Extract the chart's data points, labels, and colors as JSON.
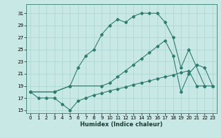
{
  "xlabel": "Humidex (Indice chaleur)",
  "xlim": [
    -0.5,
    23.5
  ],
  "ylim": [
    14.5,
    32.5
  ],
  "yticks": [
    15,
    17,
    19,
    21,
    23,
    25,
    27,
    29,
    31
  ],
  "xticks": [
    0,
    1,
    2,
    3,
    4,
    5,
    6,
    7,
    8,
    9,
    10,
    11,
    12,
    13,
    14,
    15,
    16,
    17,
    18,
    19,
    20,
    21,
    22,
    23
  ],
  "bg_color": "#c8e8e5",
  "line_color": "#2e7d6e",
  "grid_color": "#a8d4d0",
  "line1_x": [
    0,
    1,
    2,
    3,
    4,
    5,
    6,
    7,
    8,
    9,
    10,
    11,
    12,
    13,
    14,
    15,
    16,
    17,
    18,
    19,
    20,
    21,
    22,
    23
  ],
  "line1_y": [
    18,
    17,
    17,
    17,
    16,
    15,
    16.5,
    17,
    17.5,
    17.8,
    18.2,
    18.5,
    18.8,
    19.2,
    19.5,
    19.8,
    20.2,
    20.5,
    20.8,
    21.2,
    21.5,
    19,
    19,
    19
  ],
  "line2_x": [
    0,
    3,
    5,
    6,
    7,
    8,
    9,
    10,
    11,
    12,
    13,
    14,
    15,
    16,
    17,
    18,
    19,
    20,
    22
  ],
  "line2_y": [
    18,
    18,
    19,
    22,
    24,
    25,
    27.5,
    29,
    30,
    29.5,
    30.5,
    31,
    31,
    31,
    29.5,
    27,
    22,
    25,
    19
  ],
  "line3_x": [
    0,
    3,
    5,
    9,
    10,
    11,
    12,
    13,
    14,
    15,
    16,
    17,
    18,
    19,
    20,
    21,
    22,
    23
  ],
  "line3_y": [
    18,
    18,
    19,
    19,
    19.5,
    20.5,
    21.5,
    22.5,
    23.5,
    24.5,
    25.5,
    26.5,
    24,
    18,
    21,
    22.5,
    22,
    19
  ]
}
